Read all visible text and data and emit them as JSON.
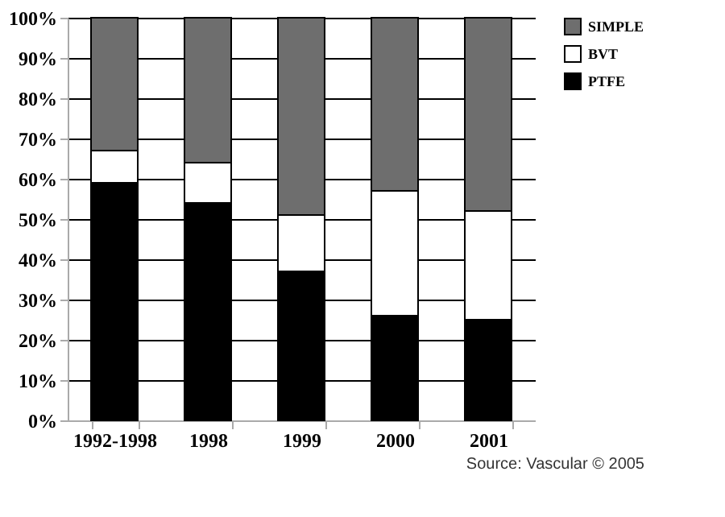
{
  "chart_data": {
    "type": "bar",
    "stacked": true,
    "categories": [
      "1992-1998",
      "1998",
      "1999",
      "2000",
      "2001"
    ],
    "series": [
      {
        "name": "PTFE",
        "color": "#000000",
        "values": [
          59,
          54,
          37,
          26,
          25
        ]
      },
      {
        "name": "BVT",
        "color": "#ffffff",
        "values": [
          8,
          10,
          14,
          31,
          27
        ]
      },
      {
        "name": "SIMPLE",
        "color": "#6e6e6e",
        "values": [
          33,
          36,
          49,
          43,
          48
        ]
      }
    ],
    "ylim": [
      0,
      100
    ],
    "yticks": [
      {
        "value": 0,
        "label": "0%"
      },
      {
        "value": 10,
        "label": "10%"
      },
      {
        "value": 20,
        "label": "20%"
      },
      {
        "value": 30,
        "label": "30%"
      },
      {
        "value": 40,
        "label": "40%"
      },
      {
        "value": 50,
        "label": "50%"
      },
      {
        "value": 60,
        "label": "60%"
      },
      {
        "value": 70,
        "label": "70%"
      },
      {
        "value": 80,
        "label": "80%"
      },
      {
        "value": 90,
        "label": "90%"
      },
      {
        "value": 100,
        "label": "100%"
      }
    ],
    "grid": "y",
    "legend": "top right",
    "annotations": [
      "Source: Vascular © 2005"
    ]
  }
}
